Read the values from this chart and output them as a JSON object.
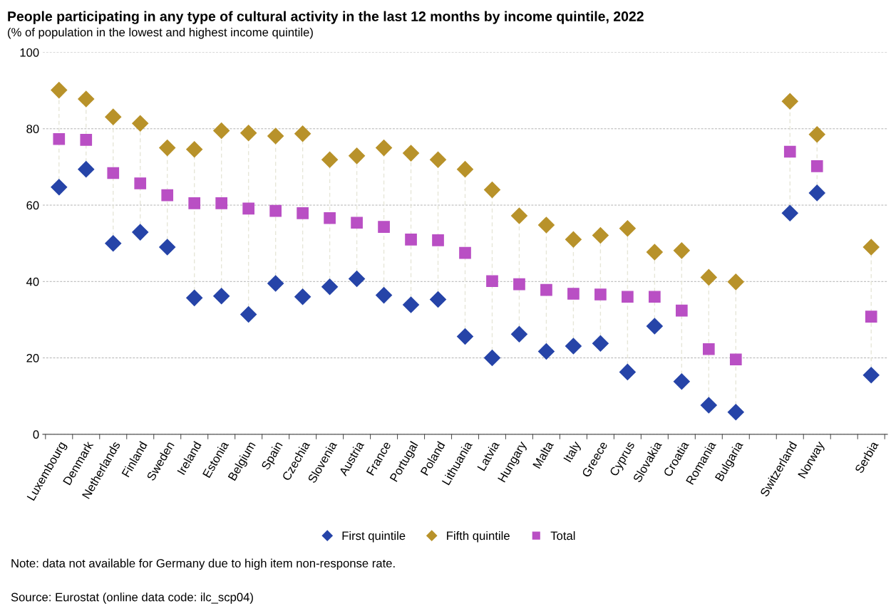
{
  "chart_data": {
    "type": "scatter",
    "title": "People participating in any type of cultural activity in the last 12 months by income quintile, 2022",
    "subtitle": "(% of population in the lowest and highest income quintile)",
    "categories": [
      "Luxembourg",
      "Denmark",
      "Netherlands",
      "Finland",
      "Sweden",
      "Ireland",
      "Estonia",
      "Belgium",
      "Spain",
      "Czechia",
      "Slovenia",
      "Austria",
      "France",
      "Portugal",
      "Poland",
      "Lithuania",
      "Latvia",
      "Hungary",
      "Malta",
      "Italy",
      "Greece",
      "Cyprus",
      "Slovakia",
      "Croatia",
      "Romania",
      "Bulgaria",
      null,
      "Switzerland",
      "Norway",
      null,
      "Serbia"
    ],
    "series": [
      {
        "name": "First quintile",
        "color": "#2644a8",
        "marker": "diamond",
        "values": [
          64.7,
          69.4,
          50.0,
          52.9,
          49.0,
          35.7,
          36.2,
          31.4,
          39.5,
          36.0,
          38.6,
          40.7,
          36.4,
          33.9,
          35.3,
          25.6,
          20.0,
          26.2,
          21.7,
          23.1,
          23.8,
          16.3,
          28.3,
          13.8,
          7.6,
          5.8,
          null,
          57.9,
          63.2,
          null,
          15.5
        ]
      },
      {
        "name": "Fifth quintile",
        "color": "#b8922a",
        "marker": "diamond",
        "values": [
          90.1,
          87.8,
          83.1,
          81.4,
          75.0,
          74.6,
          79.5,
          78.9,
          78.1,
          78.7,
          71.9,
          72.9,
          75.0,
          73.6,
          71.9,
          69.4,
          64.0,
          57.2,
          54.8,
          51.0,
          52.1,
          53.9,
          47.7,
          48.1,
          41.1,
          39.9,
          null,
          87.2,
          78.5,
          null,
          49.0
        ]
      },
      {
        "name": "Total",
        "color": "#b94fc4",
        "marker": "square",
        "values": [
          77.3,
          77.1,
          68.4,
          65.7,
          62.6,
          60.5,
          60.5,
          59.1,
          58.5,
          57.9,
          56.6,
          55.4,
          54.3,
          51.0,
          50.8,
          47.5,
          40.1,
          39.3,
          37.8,
          36.8,
          36.6,
          36.0,
          36.0,
          32.4,
          22.3,
          19.6,
          null,
          74.0,
          70.2,
          null,
          30.8
        ]
      }
    ],
    "ylim": [
      0,
      100
    ],
    "yticks": [
      0,
      20,
      40,
      60,
      80,
      100
    ],
    "grid": "y",
    "legend": "bottom",
    "annotations": [
      "Note: data not available for Germany due to high item non-response rate.",
      "Source: Eurostat (online data code: ilc_scp04)"
    ]
  }
}
